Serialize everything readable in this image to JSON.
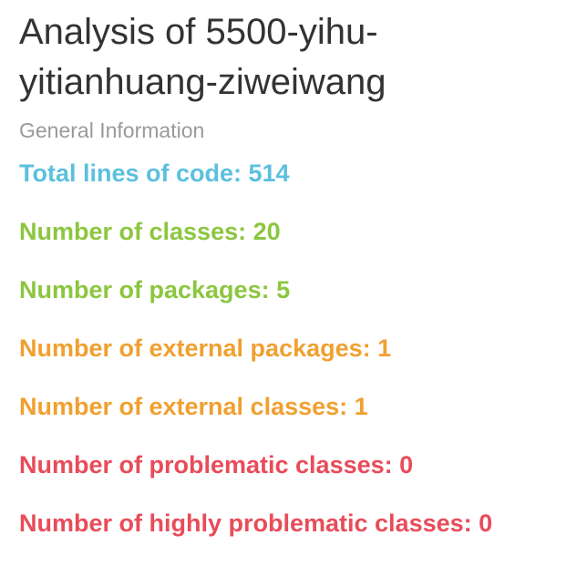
{
  "header": {
    "title_line1": "Analysis of 5500-yihu-",
    "title_line2": "yitianhuang-ziweiwang",
    "subtitle": "General Information"
  },
  "stats": [
    {
      "label": "Total lines of code: 514",
      "color": "#5bc0de"
    },
    {
      "label": "Number of classes: 20",
      "color": "#8cc63f"
    },
    {
      "label": "Number of packages: 5",
      "color": "#8cc63f"
    },
    {
      "label": "Number of external packages: 1",
      "color": "#f0a030"
    },
    {
      "label": "Number of external classes: 1",
      "color": "#f0a030"
    },
    {
      "label": "Number of problematic classes: 0",
      "color": "#e84c5a"
    },
    {
      "label": "Number of highly problematic classes: 0",
      "color": "#e84c5a"
    }
  ]
}
